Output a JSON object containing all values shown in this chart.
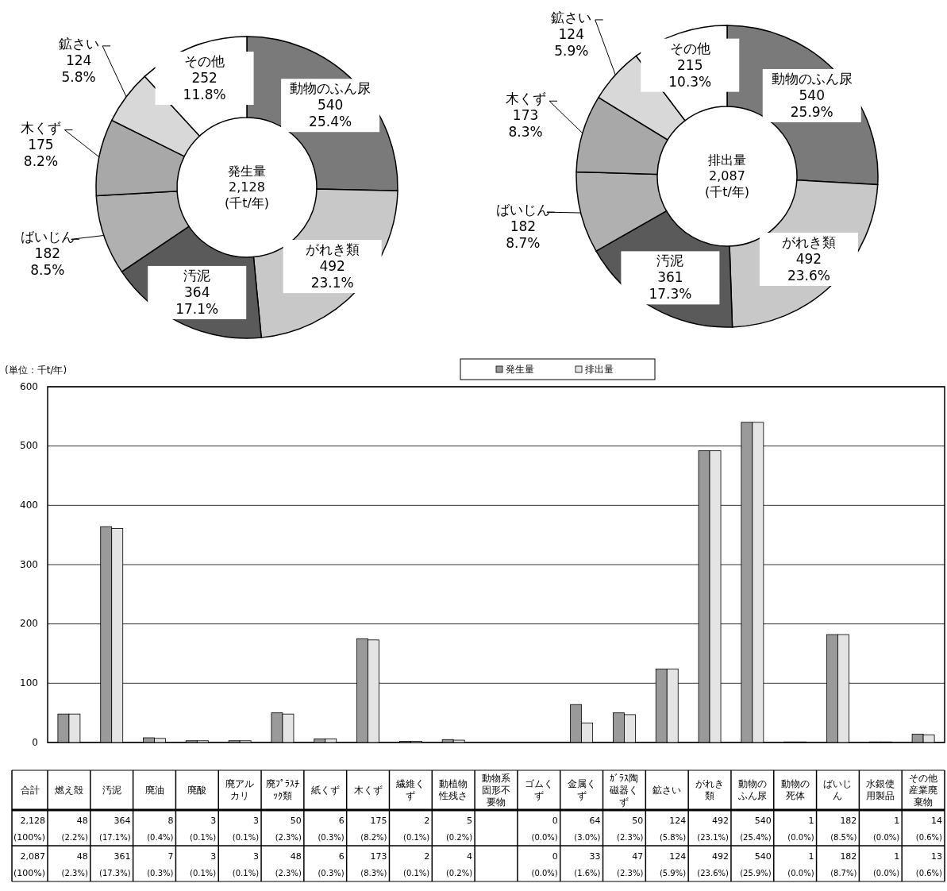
{
  "chart_data": [
    {
      "type": "donut",
      "title": "発生量",
      "annotations": [
        "2,128",
        "(千t/年)"
      ],
      "categories": [
        "動物のふん尿",
        "がれき類",
        "汚泥",
        "ばいじん",
        "木くず",
        "鉱さい",
        "その他"
      ],
      "values": [
        540,
        492,
        364,
        182,
        175,
        124,
        252
      ],
      "value_labels": [
        "540 25.4%",
        "492 23.1%",
        "364 17.1%",
        "182 8.5%",
        "175 8.2%",
        "124 5.8%",
        "252 11.8%"
      ],
      "colors": [
        "#7a7a7a",
        "#c8c8c8",
        "#5a5a5a",
        "#b0b0b0",
        "#a8a8a8",
        "#d8d8d8",
        "#ffffff"
      ]
    },
    {
      "type": "donut",
      "title": "排出量",
      "annotations": [
        "2,087",
        "(千t/年)"
      ],
      "categories": [
        "動物のふん尿",
        "がれき類",
        "汚泥",
        "ばいじん",
        "木くず",
        "鉱さい",
        "その他"
      ],
      "values": [
        540,
        492,
        361,
        182,
        173,
        124,
        215
      ],
      "value_labels": [
        "540 25.9%",
        "492 23.6%",
        "361 17.3%",
        "182 8.7%",
        "173 8.3%",
        "124 5.9%",
        "215 10.3%"
      ],
      "colors": [
        "#7a7a7a",
        "#c8c8c8",
        "#5a5a5a",
        "#b0b0b0",
        "#a8a8a8",
        "#d8d8d8",
        "#ffffff"
      ]
    },
    {
      "type": "bar",
      "ylabel": "(単位：千t/年)",
      "ylim": [
        0,
        600
      ],
      "yticks": [
        0,
        100,
        200,
        300,
        400,
        500,
        600
      ],
      "grid": "y",
      "legend": "top",
      "annotations": [
        "合計",
        "2,128",
        "(100%)",
        "2,087",
        "(100%)"
      ],
      "categories": [
        "燃え殻",
        "汚泥",
        "廃油",
        "廃酸",
        "廃アルカリ",
        "廃ﾌﾟﾗｽﾁｯｸ類",
        "紙くず",
        "木くず",
        "繊維くず",
        "動植物性残さ",
        "動物系固形不要物",
        "ゴムくず",
        "金属くず",
        "ｶﾞﾗｽ陶磁器くず",
        "鉱さい",
        "がれき類",
        "動物のふん尿",
        "動物の死体",
        "ばいじん",
        "水銀使用製品",
        "その他産業廃棄物"
      ],
      "series": [
        {
          "name": "発生量",
          "color": "#9a9a9a",
          "values": [
            48,
            364,
            8,
            3,
            3,
            50,
            6,
            175,
            2,
            5,
            null,
            0,
            64,
            50,
            124,
            492,
            540,
            1,
            182,
            1,
            14
          ],
          "value_labels": [
            "48 (2.2%)",
            "364 (17.1%)",
            "8 (0.4%)",
            "3 (0.1%)",
            "3 (0.1%)",
            "50 (2.3%)",
            "6 (0.3%)",
            "175 (8.2%)",
            "2 (0.1%)",
            "5 (0.2%)",
            null,
            "0 (0.0%)",
            "64 (3.0%)",
            "50 (2.3%)",
            "124 (5.8%)",
            "492 (23.1%)",
            "540 (25.4%)",
            "1 (0.0%)",
            "182 (8.5%)",
            "1 (0.0%)",
            "14 (0.6%)"
          ]
        },
        {
          "name": "排出量",
          "color": "#e4e4e4",
          "values": [
            48,
            361,
            7,
            3,
            3,
            48,
            6,
            173,
            2,
            4,
            null,
            0,
            33,
            47,
            124,
            492,
            540,
            1,
            182,
            1,
            13
          ],
          "value_labels": [
            "48 (2.3%)",
            "361 (17.3%)",
            "7 (0.3%)",
            "3 (0.1%)",
            "3 (0.1%)",
            "48 (2.3%)",
            "6 (0.3%)",
            "173 (8.3%)",
            "2 (0.1%)",
            "4 (0.2%)",
            null,
            "0 (0.0%)",
            "33 (1.6%)",
            "47 (2.3%)",
            "124 (5.9%)",
            "492 (23.6%)",
            "540 (25.9%)",
            "1 (0.0%)",
            "182 (8.7%)",
            "1 (0.0%)",
            "13 (0.6%)"
          ]
        }
      ]
    }
  ]
}
